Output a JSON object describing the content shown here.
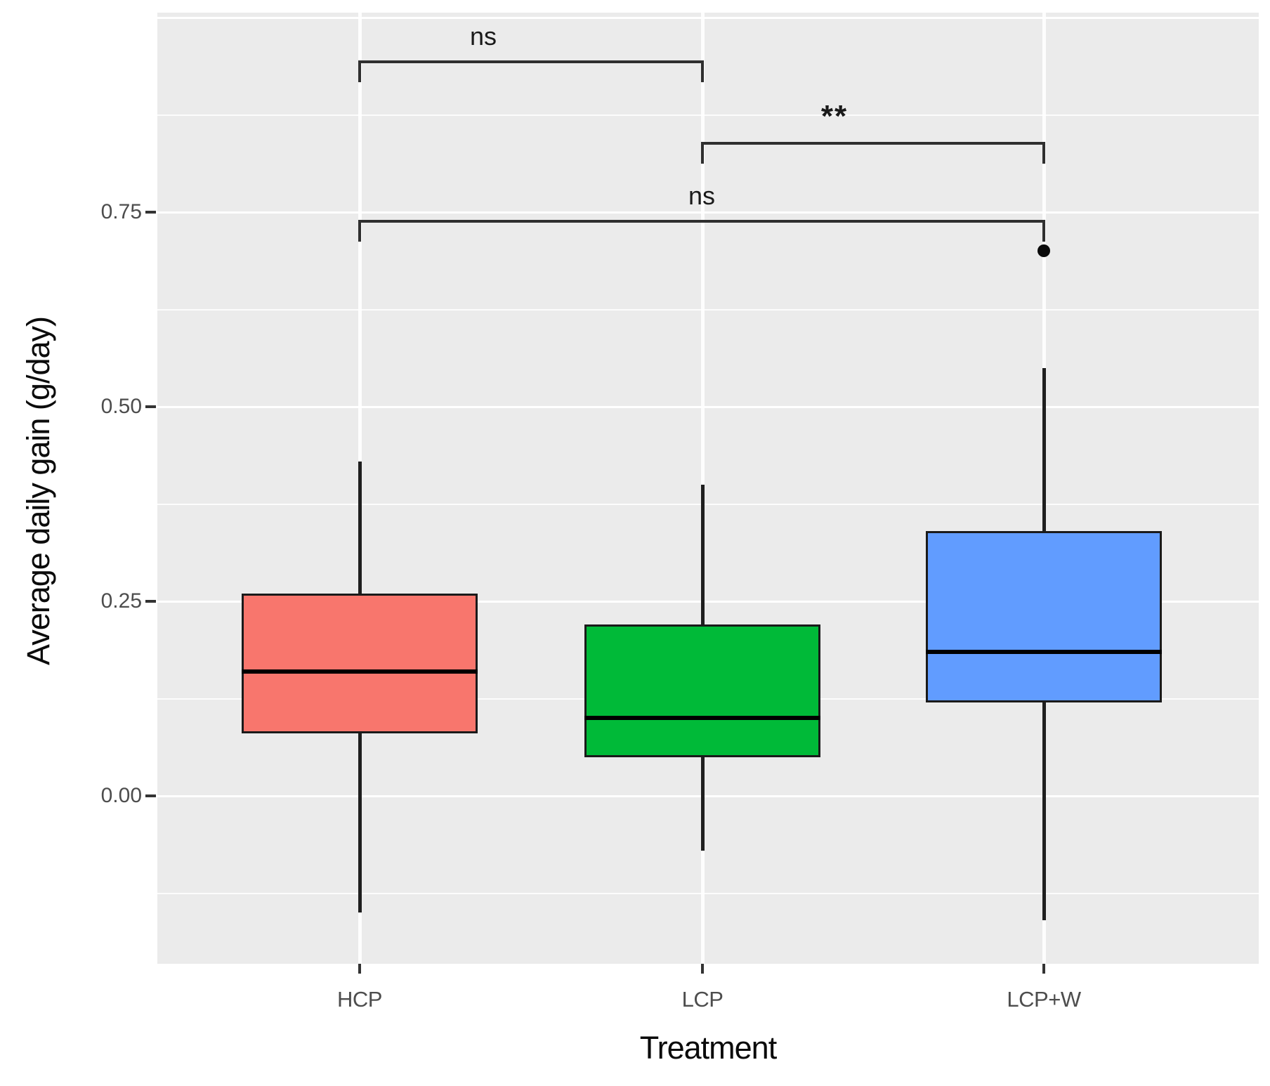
{
  "chart_data": {
    "type": "boxplot",
    "title": "",
    "xlabel": "Treatment",
    "ylabel": "Average daily gain (g/day)",
    "categories": [
      "HCP",
      "LCP",
      "LCP+W"
    ],
    "series": [
      {
        "name": "HCP",
        "lower_whisker": -0.15,
        "q1": 0.08,
        "median": 0.16,
        "q3": 0.26,
        "upper_whisker": 0.43,
        "outliers": [],
        "fill": "#F8766D"
      },
      {
        "name": "LCP",
        "lower_whisker": -0.07,
        "q1": 0.05,
        "median": 0.1,
        "q3": 0.22,
        "upper_whisker": 0.4,
        "outliers": [],
        "fill": "#00BA38"
      },
      {
        "name": "LCP+W",
        "lower_whisker": -0.16,
        "q1": 0.12,
        "median": 0.185,
        "q3": 0.34,
        "upper_whisker": 0.55,
        "outliers": [
          0.7
        ],
        "fill": "#619CFF"
      }
    ],
    "y_ticks": [
      {
        "label": "0.00",
        "value": 0.0
      },
      {
        "label": "0.25",
        "value": 0.25
      },
      {
        "label": "0.50",
        "value": 0.5
      },
      {
        "label": "0.75",
        "value": 0.75
      }
    ],
    "ylim": [
      -0.22,
      1.01
    ],
    "grid": {
      "major_values": [
        0.0,
        0.25,
        0.5,
        0.75,
        1.0
      ],
      "minor_values": [
        -0.125,
        0.125,
        0.375,
        0.625,
        0.875
      ]
    },
    "annotations": [
      {
        "label": "ns",
        "from": "HCP",
        "to": "LCP",
        "bar_value": 0.945,
        "significant": false
      },
      {
        "label": "**",
        "from": "LCP",
        "to": "LCP+W",
        "bar_value": 0.84,
        "significant": true
      },
      {
        "label": "ns",
        "from": "HCP",
        "to": "LCP+W",
        "bar_value": 0.74,
        "significant": false
      }
    ],
    "legend": null,
    "panel_bg": "#EBEBEB",
    "gridline_color": "#FFFFFF",
    "box_border_color": "#1A1A1A",
    "axis_text_color": "#4D4D4D",
    "axis_title_color": "#0B0B0B"
  }
}
